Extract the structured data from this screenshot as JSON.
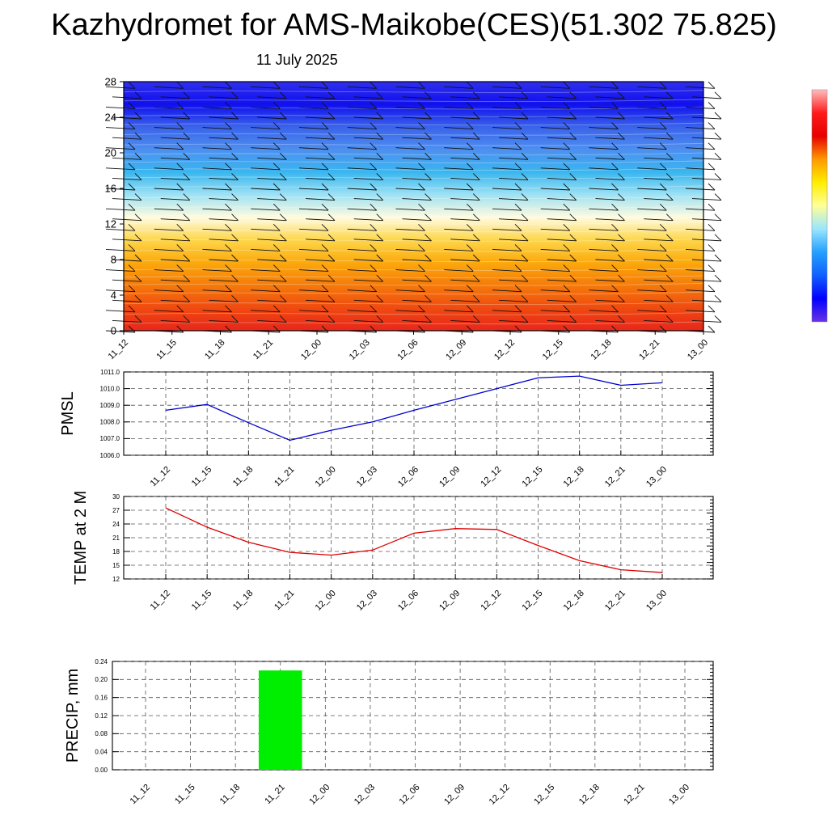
{
  "page": {
    "title": "Kazhydromet for AMS-Maikobe(CES)(51.302 75.825)",
    "subtitle": "11 July 2025"
  },
  "colors": {
    "pmsl_line": "#0000cc",
    "temp_line": "#dd0000",
    "precip_bar": "#00ee00",
    "grid": "#555555",
    "cross_section_stops": [
      "#e8261b",
      "#f04a10",
      "#f57a0a",
      "#fca90c",
      "#fdd64a",
      "#fffbe0",
      "#9fe2f4",
      "#3ab6ef",
      "#4d8ff0",
      "#3a63ea",
      "#1010ee",
      "#2f2fee"
    ],
    "colorbar_stops": [
      "#ffbdbd",
      "#ff1a1a",
      "#e60000",
      "#ff9900",
      "#ffee00",
      "#ffff99",
      "#99e6ff",
      "#22a0ff",
      "#1060ff",
      "#0000ff",
      "#6a33e6"
    ]
  },
  "chart_data": [
    {
      "type": "heatmap",
      "name_hint": "cross-section",
      "x": [
        "11_12",
        "11_15",
        "11_18",
        "11_21",
        "12_00",
        "12_03",
        "12_06",
        "12_09",
        "12_12",
        "12_15",
        "12_18",
        "12_21",
        "13_00"
      ],
      "yticks": [
        "0",
        "4",
        "8",
        "12",
        "16",
        "20",
        "24",
        "28"
      ],
      "ylim": [
        0,
        28
      ],
      "grid": false,
      "legend": "colorbar-right"
    },
    {
      "type": "line",
      "name_hint": "pmsl",
      "ylabel": "PMSL",
      "x": [
        "11_12",
        "11_15",
        "11_18",
        "11_21",
        "12_00",
        "12_03",
        "12_06",
        "12_09",
        "12_12",
        "12_15",
        "12_18",
        "12_21",
        "13_00"
      ],
      "values": [
        1008.7,
        1009.05,
        1007.95,
        1006.9,
        1007.5,
        1008.0,
        1008.7,
        1009.35,
        1010.0,
        1010.65,
        1010.75,
        1010.2,
        1010.35
      ],
      "yticks": [
        "1006.0",
        "1007.0",
        "1008.0",
        "1009.0",
        "1010.0",
        "1011.0"
      ],
      "ylim": [
        1006,
        1011
      ],
      "grid": true
    },
    {
      "type": "line",
      "name_hint": "temp",
      "ylabel": "TEMP at 2 M",
      "x": [
        "11_12",
        "11_15",
        "11_18",
        "11_21",
        "12_00",
        "12_03",
        "12_06",
        "12_09",
        "12_12",
        "12_15",
        "12_18",
        "12_21",
        "13_00"
      ],
      "values": [
        27.5,
        23.3,
        20.0,
        17.8,
        17.2,
        18.3,
        22.0,
        23.0,
        22.8,
        19.3,
        16.0,
        14.0,
        13.4
      ],
      "yticks": [
        "12",
        "15",
        "18",
        "21",
        "24",
        "27",
        "30"
      ],
      "ylim": [
        12,
        30
      ],
      "grid": true
    },
    {
      "type": "bar",
      "name_hint": "precip",
      "ylabel": "PRECIP, mm",
      "categories": [
        "11_12",
        "11_15",
        "11_18",
        "11_21",
        "12_00",
        "12_03",
        "12_06",
        "12_09",
        "12_12",
        "12_15",
        "12_18",
        "12_21",
        "13_00"
      ],
      "values": [
        0,
        0,
        0,
        0.22,
        0,
        0,
        0,
        0,
        0,
        0,
        0,
        0,
        0
      ],
      "yticks": [
        "0.00",
        "0.04",
        "0.08",
        "0.12",
        "0.16",
        "0.20",
        "0.24"
      ],
      "ylim": [
        0,
        0.24
      ],
      "grid": true
    }
  ]
}
